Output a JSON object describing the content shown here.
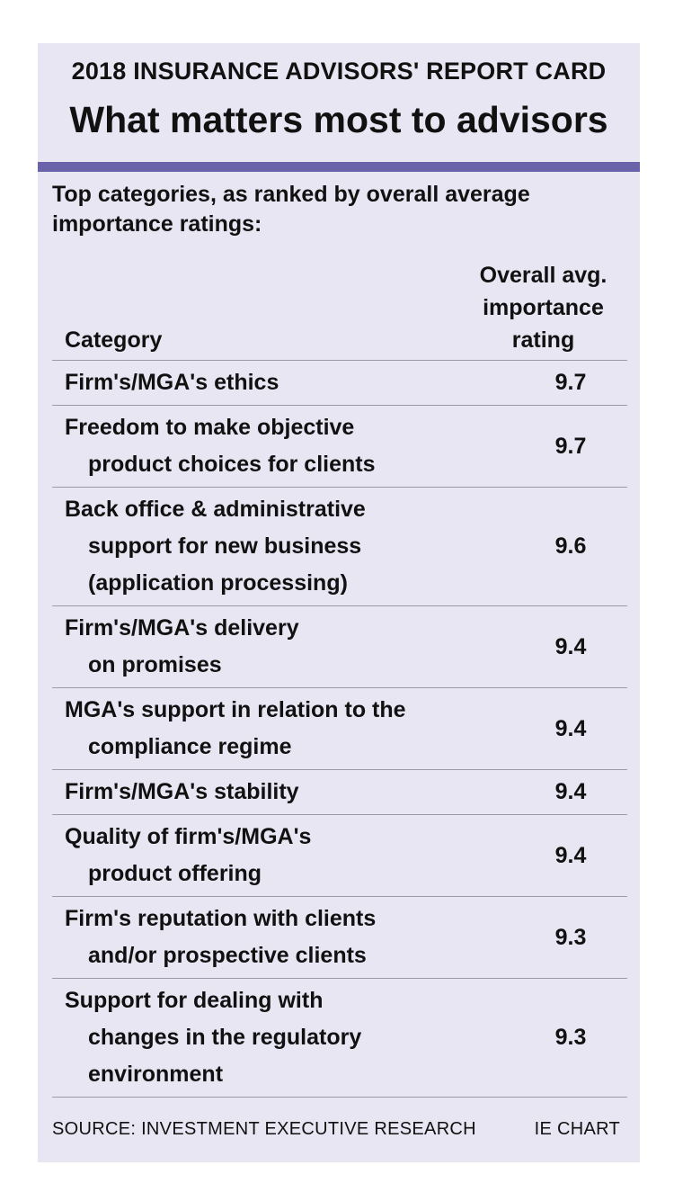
{
  "chart_data": {
    "type": "table",
    "kicker": "2018 INSURANCE ADVISORS' REPORT CARD",
    "title": "What matters most to advisors",
    "subtitle": "Top categories, as ranked by overall average importance ratings:",
    "columns": [
      "Category",
      "Overall avg. importance rating"
    ],
    "rows": [
      {
        "category": [
          "Firm's/MGA's ethics"
        ],
        "value": "9.7"
      },
      {
        "category": [
          "Freedom to make objective",
          "product choices for clients"
        ],
        "value": "9.7"
      },
      {
        "category": [
          "Back office & administrative",
          "support for new business",
          "(application processing)"
        ],
        "value": "9.6"
      },
      {
        "category": [
          "Firm's/MGA's delivery",
          "on promises"
        ],
        "value": "9.4"
      },
      {
        "category": [
          "MGA's support in relation to the",
          "compliance regime"
        ],
        "value": "9.4"
      },
      {
        "category": [
          "Firm's/MGA's stability"
        ],
        "value": "9.4"
      },
      {
        "category": [
          "Quality of firm's/MGA's",
          "product offering"
        ],
        "value": "9.4"
      },
      {
        "category": [
          "Firm's reputation with clients",
          "and/or prospective clients"
        ],
        "value": "9.3"
      },
      {
        "category": [
          "Support for dealing with",
          "changes in the regulatory",
          "environment"
        ],
        "value": "9.3"
      }
    ],
    "source": "SOURCE: INVESTMENT EXECUTIVE RESEARCH",
    "credit": "IE CHART"
  },
  "colors": {
    "panel": "#e8e6f3",
    "accent_bar": "#6b63a9",
    "rule": "#9c9aa6"
  }
}
